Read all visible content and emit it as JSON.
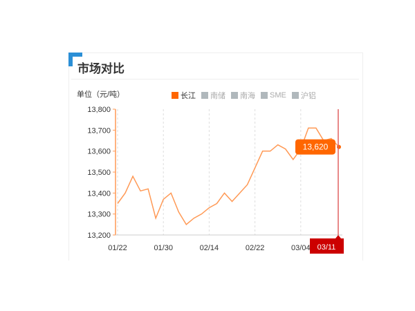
{
  "panel": {
    "title": "市场对比"
  },
  "chart_data": {
    "type": "line",
    "unit_label": "单位（元/吨）",
    "legend": [
      {
        "name": "长江",
        "active": true,
        "color": "#ff6600"
      },
      {
        "name": "南储",
        "active": false
      },
      {
        "name": "南海",
        "active": false
      },
      {
        "name": "SME",
        "active": false
      },
      {
        "name": "沪铝",
        "active": false
      }
    ],
    "ylim": [
      13200,
      13800
    ],
    "yticks": [
      "13,200",
      "13,300",
      "13,400",
      "13,500",
      "13,600",
      "13,700",
      "13,800"
    ],
    "yvals": [
      13200,
      13300,
      13400,
      13500,
      13600,
      13700,
      13800
    ],
    "xtick_labels": [
      {
        "i": 0,
        "label": "01/22"
      },
      {
        "i": 6,
        "label": "01/30"
      },
      {
        "i": 12,
        "label": "02/14"
      },
      {
        "i": 18,
        "label": "02/22"
      },
      {
        "i": 24,
        "label": "03/04"
      }
    ],
    "series": [
      {
        "color": "#ff9955",
        "values": [
          13350,
          13400,
          13480,
          13410,
          13420,
          13280,
          13370,
          13400,
          13310,
          13250,
          13280,
          13300,
          13330,
          13350,
          13400,
          13360,
          13400,
          13440,
          13520,
          13600,
          13600,
          13630,
          13610,
          13560,
          13610,
          13710,
          13710,
          13650,
          13660,
          13620
        ]
      }
    ],
    "tooltip": {
      "value": "13,620",
      "date": "03/11",
      "color": "#ff6600",
      "cursor_color": "#cc0000"
    },
    "grid": "vertical-dashed"
  }
}
